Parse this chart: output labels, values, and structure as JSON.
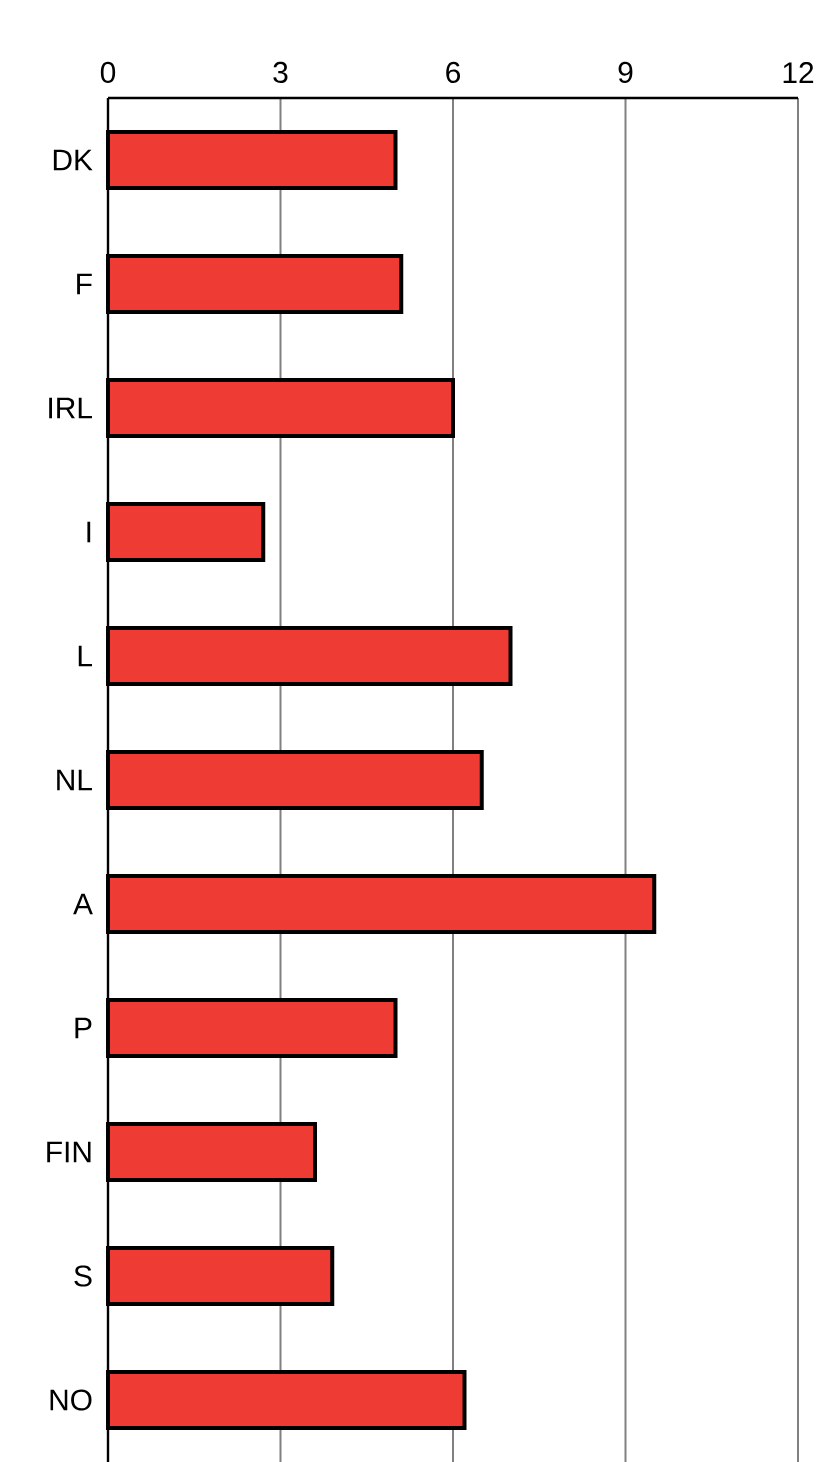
{
  "chart_data": {
    "type": "bar",
    "orientation": "horizontal",
    "categories": [
      "DK",
      "F",
      "IRL",
      "I",
      "L",
      "NL",
      "A",
      "P",
      "FIN",
      "S",
      "NO"
    ],
    "values": [
      5.0,
      5.1,
      6.0,
      2.7,
      7.0,
      6.5,
      9.5,
      5.0,
      3.6,
      3.9,
      6.2
    ],
    "color": "#ee3b33",
    "xlim": [
      0,
      12
    ],
    "xticks": [
      0,
      3,
      6,
      9,
      12
    ],
    "grid": "x"
  }
}
